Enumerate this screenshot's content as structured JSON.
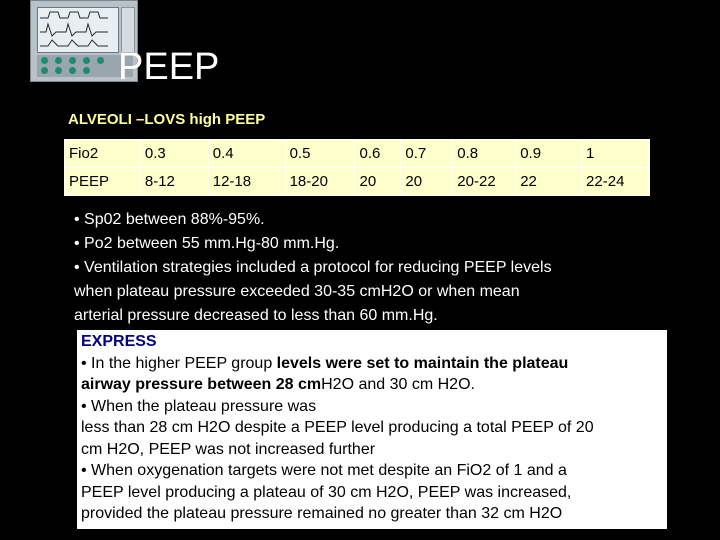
{
  "page": {
    "title": "PEEP",
    "subtitle": "ALVEOLI –LOVS high PEEP"
  },
  "table": {
    "rows": [
      [
        "Fio2",
        "0.3",
        "0.4",
        "0.5",
        "0.6",
        "0.7",
        "0.8",
        "0.9",
        "1"
      ],
      [
        "PEEP",
        "8-12",
        "12-18",
        "18-20",
        "20",
        "20",
        "20-22",
        "22",
        "22-24"
      ]
    ]
  },
  "bullets1": [
    "• Sp02 between  88%-95%.",
    "• Po2  between 55 mm.Hg-80 mm.Hg.",
    "• Ventilation strategies included a protocol for reducing PEEP levels",
    "when plateau pressure exceeded 30-35 cmH2O or when mean",
    "arterial pressure decreased to less than 60 mm.Hg."
  ],
  "express": {
    "heading": "EXPRESS",
    "l1a": "• In the higher PEEP group  ",
    "l1b": "levels were set to maintain the plateau",
    "l2a": "airway pressure between 28 cm",
    "l2b": "H2O and 30 cm H2O.",
    "l3": "• When the plateau pressure was",
    "l4": "less than 28 cm H2O despite a PEEP level producing a total PEEP of 20",
    "l5": "cm H2O, PEEP was not increased further",
    "l6": "• When oxygenation targets  were not met despite an FiO2 of 1 and a",
    "l7": "PEEP level producing a plateau of 30 cm H2O, PEEP was increased,",
    "l8": "provided the plateau pressure remained no greater than 32 cm H2O"
  },
  "colors": {
    "background": "#000000",
    "subtitle": "#ffff99",
    "table_bg": "#ffffcc",
    "express_heading": "#000080"
  },
  "icons": {
    "ventilator": "ventilator-image"
  }
}
